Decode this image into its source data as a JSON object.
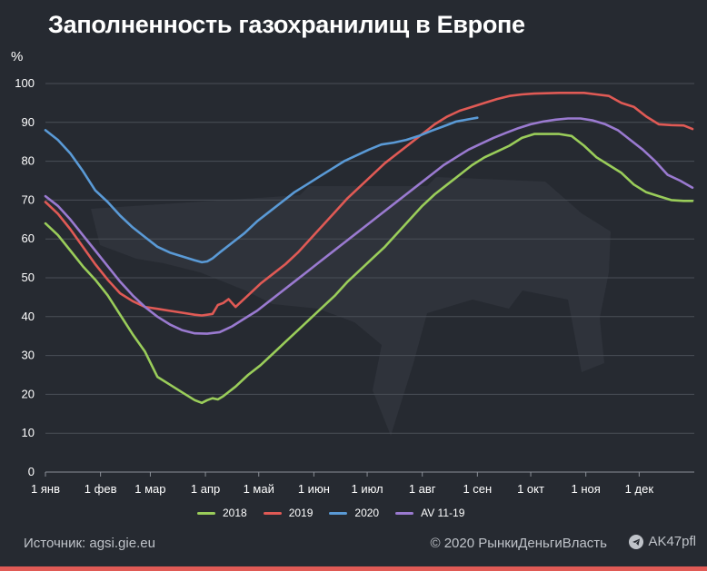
{
  "header": {
    "title": "Заполненность газохранилищ в Европе",
    "y_unit": "%"
  },
  "footer": {
    "source": "Источник: agsi.gie.eu",
    "copyright": "© 2020  РынкиДеньгиВласть",
    "brand": "AK47pfl",
    "accent_color": "#e05a55"
  },
  "icons": {
    "brand_icon": "telegram-icon",
    "watermark": "rifle-watermark"
  },
  "chart_data": {
    "type": "line",
    "title": "Заполненность газохранилищ в Европе",
    "ylabel": "%",
    "xlabel": "",
    "ylim": [
      0,
      100
    ],
    "yticks": [
      0,
      10,
      20,
      30,
      40,
      50,
      60,
      70,
      80,
      90,
      100
    ],
    "xlim": [
      0,
      365
    ],
    "xticks": [
      {
        "day": 0,
        "label": "1 янв"
      },
      {
        "day": 31,
        "label": "1 фев"
      },
      {
        "day": 59,
        "label": "1 мар"
      },
      {
        "day": 90,
        "label": "1 апр"
      },
      {
        "day": 120,
        "label": "1 май"
      },
      {
        "day": 151,
        "label": "1 июн"
      },
      {
        "day": 181,
        "label": "1 июл"
      },
      {
        "day": 212,
        "label": "1 авг"
      },
      {
        "day": 243,
        "label": "1 сен"
      },
      {
        "day": 273,
        "label": "1 окт"
      },
      {
        "day": 304,
        "label": "1 ноя"
      },
      {
        "day": 334,
        "label": "1 дек"
      }
    ],
    "grid": true,
    "legend_position": "bottom",
    "series": [
      {
        "name": "2018",
        "color": "#9acd5a",
        "x": [
          0,
          7,
          14,
          21,
          28,
          35,
          42,
          49,
          56,
          63,
          70,
          77,
          84,
          88,
          91,
          94,
          97,
          100,
          107,
          114,
          121,
          128,
          135,
          142,
          149,
          156,
          163,
          170,
          177,
          184,
          191,
          198,
          205,
          212,
          219,
          226,
          233,
          240,
          247,
          254,
          261,
          268,
          275,
          282,
          289,
          296,
          303,
          310,
          317,
          324,
          331,
          338,
          345,
          352,
          359,
          364
        ],
        "y": [
          64,
          61,
          57,
          53,
          49.5,
          45.5,
          40.5,
          35.5,
          31,
          24.5,
          22.5,
          20.5,
          18.5,
          17.8,
          18.5,
          19,
          18.7,
          19.5,
          22,
          25,
          27.5,
          30.5,
          33.5,
          36.5,
          39.5,
          42.5,
          45.5,
          49,
          52,
          55,
          58,
          61.5,
          65,
          68.5,
          71.5,
          74,
          76.5,
          79,
          81,
          82.5,
          84,
          86,
          87,
          87,
          87,
          86.5,
          84,
          81,
          79,
          77,
          74,
          72,
          71,
          70,
          69.8,
          69.8
        ]
      },
      {
        "name": "2019",
        "color": "#e05a55",
        "x": [
          0,
          7,
          14,
          21,
          28,
          35,
          42,
          49,
          56,
          63,
          70,
          77,
          84,
          88,
          91,
          94,
          97,
          100,
          103,
          107,
          114,
          121,
          128,
          135,
          142,
          149,
          156,
          163,
          170,
          177,
          184,
          191,
          198,
          205,
          212,
          219,
          226,
          233,
          240,
          247,
          254,
          261,
          268,
          275,
          282,
          289,
          296,
          303,
          310,
          317,
          324,
          331,
          338,
          345,
          352,
          359,
          364
        ],
        "y": [
          69.5,
          66.5,
          62.5,
          58,
          53.5,
          49.5,
          46,
          44,
          42.5,
          42,
          41.5,
          41,
          40.5,
          40.3,
          40.5,
          40.7,
          43,
          43.5,
          44.5,
          42.5,
          45.5,
          48.5,
          51,
          53.5,
          56.5,
          60,
          63.5,
          67,
          70.5,
          73.5,
          76.5,
          79.5,
          82,
          84.5,
          87,
          89.5,
          91.5,
          93,
          94,
          95,
          96,
          96.8,
          97.2,
          97.4,
          97.5,
          97.6,
          97.6,
          97.6,
          97.2,
          96.8,
          95,
          94,
          91.5,
          89.5,
          89.3,
          89.2,
          88.3
        ]
      },
      {
        "name": "2020",
        "color": "#5a9ad6",
        "x": [
          0,
          7,
          14,
          21,
          28,
          35,
          42,
          49,
          56,
          63,
          70,
          77,
          84,
          88,
          91,
          94,
          98,
          105,
          112,
          119,
          126,
          133,
          140,
          147,
          154,
          161,
          168,
          175,
          182,
          189,
          196,
          203,
          210,
          217,
          224,
          231,
          238,
          243
        ],
        "y": [
          88,
          85.5,
          82,
          77.5,
          72.5,
          69.5,
          66,
          63,
          60.5,
          58,
          56.5,
          55.5,
          54.5,
          54,
          54.2,
          55,
          56.5,
          59,
          61.5,
          64.5,
          67,
          69.5,
          72,
          74,
          76,
          78,
          80,
          81.5,
          83,
          84.3,
          84.8,
          85.5,
          86.5,
          87.8,
          89,
          90.2,
          90.8,
          91.2
        ]
      },
      {
        "name": "AV 11-19",
        "color": "#9a7ad0",
        "x": [
          0,
          7,
          14,
          21,
          28,
          35,
          42,
          49,
          56,
          63,
          70,
          77,
          84,
          91,
          98,
          105,
          112,
          119,
          126,
          133,
          140,
          147,
          154,
          161,
          168,
          175,
          182,
          189,
          196,
          203,
          210,
          217,
          224,
          231,
          238,
          245,
          252,
          259,
          266,
          273,
          280,
          287,
          294,
          301,
          308,
          315,
          322,
          329,
          336,
          343,
          350,
          357,
          364
        ],
        "y": [
          71,
          68.5,
          65,
          61,
          57,
          53,
          49,
          45.5,
          42.5,
          40,
          38,
          36.5,
          35.7,
          35.6,
          36,
          37.5,
          39.5,
          41.5,
          44,
          46.5,
          49,
          51.5,
          54,
          56.5,
          59,
          61.5,
          64,
          66.5,
          69,
          71.5,
          74,
          76.5,
          79,
          81,
          83,
          84.5,
          86,
          87.3,
          88.5,
          89.5,
          90.2,
          90.7,
          91,
          91,
          90.5,
          89.5,
          88,
          85.5,
          83,
          80,
          76.5,
          75,
          73.2
        ]
      }
    ]
  }
}
